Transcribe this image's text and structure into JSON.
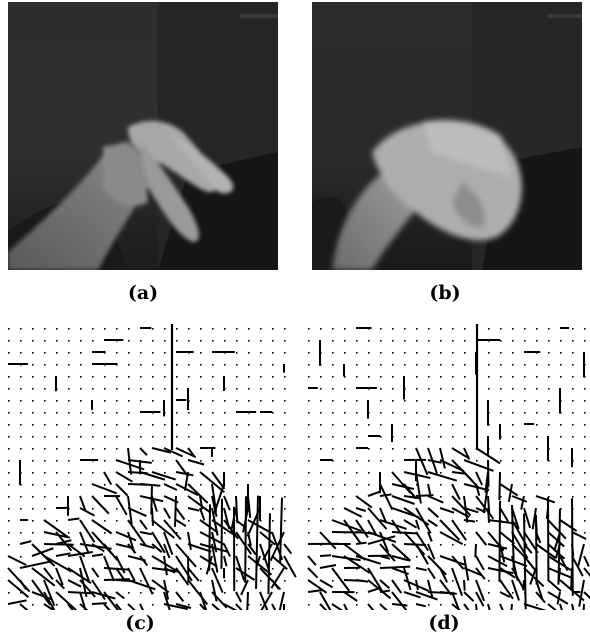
{
  "figure": {
    "captions": {
      "a": "(a)",
      "b": "(b)",
      "c": "(c)",
      "d": "(d)"
    }
  }
}
